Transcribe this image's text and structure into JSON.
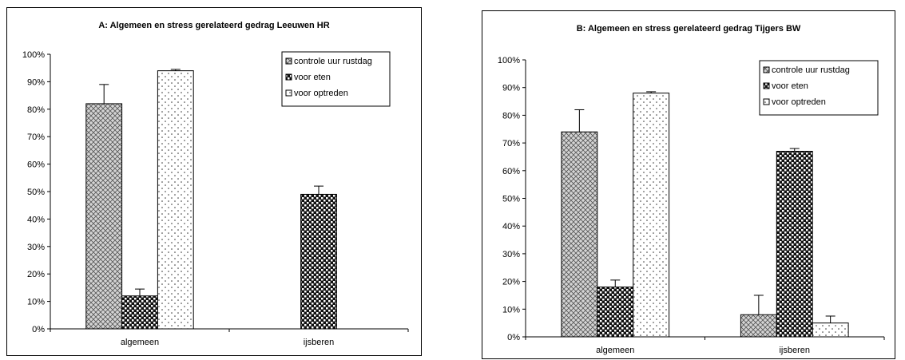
{
  "chart_data": [
    {
      "type": "bar",
      "title": "A: Algemeen en stress gerelateerd gedrag Leeuwen HR",
      "categories": [
        "algemeen",
        "ijsberen"
      ],
      "series": [
        {
          "name": "controle uur rustdag",
          "values": [
            0.82,
            0.0
          ],
          "errors": [
            0.07,
            0.0
          ]
        },
        {
          "name": "voor eten",
          "values": [
            0.12,
            0.49
          ],
          "errors": [
            0.025,
            0.03
          ]
        },
        {
          "name": "voor optreden",
          "values": [
            0.94,
            0.0
          ],
          "errors": [
            0.005,
            0.0
          ]
        }
      ],
      "ylim": [
        0,
        1
      ],
      "yticks": [
        "0%",
        "10%",
        "20%",
        "30%",
        "40%",
        "50%",
        "60%",
        "70%",
        "80%",
        "90%",
        "100%"
      ],
      "legend_position": "top-right",
      "grid": false
    },
    {
      "type": "bar",
      "title": "B: Algemeen en stress gerelateerd gedrag Tijgers BW",
      "categories": [
        "algemeen",
        "ijsberen"
      ],
      "series": [
        {
          "name": "controle uur rustdag",
          "values": [
            0.74,
            0.08
          ],
          "errors": [
            0.08,
            0.07
          ]
        },
        {
          "name": "voor eten",
          "values": [
            0.18,
            0.67
          ],
          "errors": [
            0.025,
            0.01
          ]
        },
        {
          "name": "voor optreden",
          "values": [
            0.88,
            0.05
          ],
          "errors": [
            0.005,
            0.025
          ]
        }
      ],
      "ylim": [
        0,
        1
      ],
      "yticks": [
        "0%",
        "10%",
        "20%",
        "30%",
        "40%",
        "50%",
        "60%",
        "70%",
        "80%",
        "90%",
        "100%"
      ],
      "legend_position": "top-right",
      "grid": false
    }
  ]
}
